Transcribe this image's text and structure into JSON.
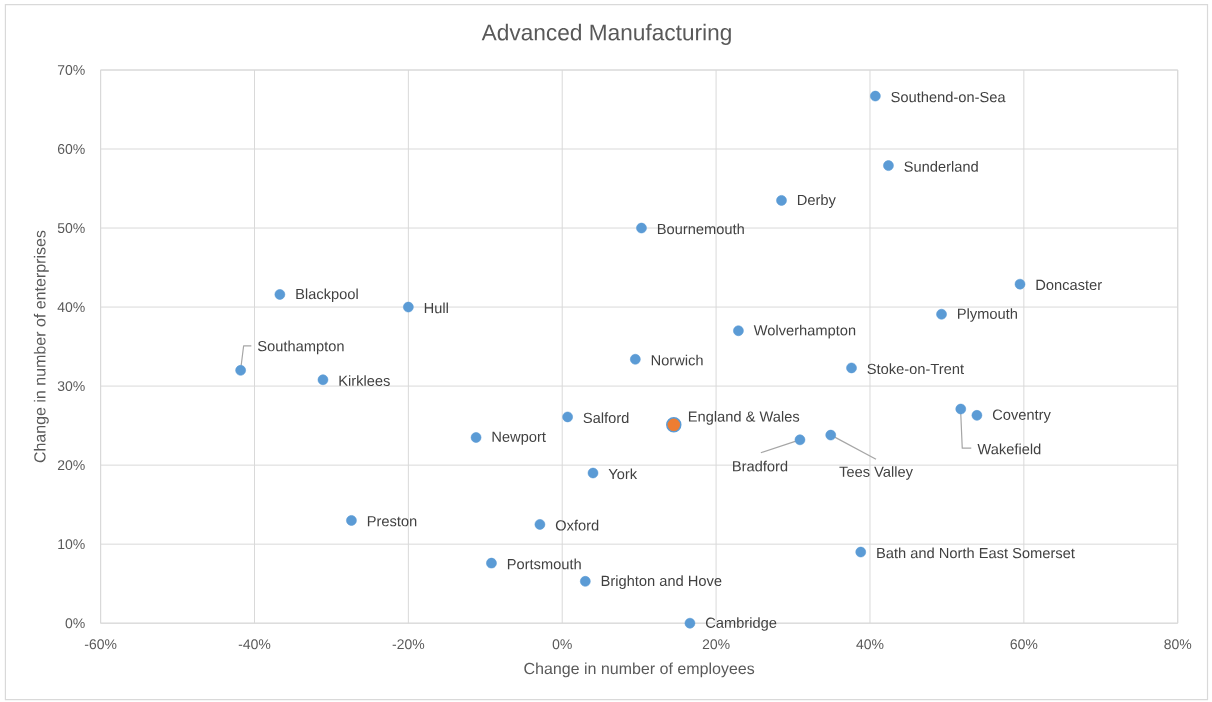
{
  "chart_data": {
    "type": "scatter",
    "title": "Advanced Manufacturing",
    "xlabel": "Change in number of employees",
    "ylabel": "Change in number of enterprises",
    "xlim": [
      -60,
      80
    ],
    "ylim": [
      0,
      70
    ],
    "xticks": [
      {
        "value": -60,
        "label": "-60%"
      },
      {
        "value": -40,
        "label": "-40%"
      },
      {
        "value": -20,
        "label": "-20%"
      },
      {
        "value": 0,
        "label": "0%"
      },
      {
        "value": 20,
        "label": "20%"
      },
      {
        "value": 40,
        "label": "40%"
      },
      {
        "value": 60,
        "label": "60%"
      },
      {
        "value": 80,
        "label": "80%"
      }
    ],
    "yticks": [
      {
        "value": 0,
        "label": "0%"
      },
      {
        "value": 10,
        "label": "10%"
      },
      {
        "value": 20,
        "label": "20%"
      },
      {
        "value": 30,
        "label": "30%"
      },
      {
        "value": 40,
        "label": "40%"
      },
      {
        "value": 50,
        "label": "50%"
      },
      {
        "value": 60,
        "label": "60%"
      },
      {
        "value": 70,
        "label": "70%"
      }
    ],
    "grid": true,
    "marker": "circle",
    "series": [
      {
        "color": "#5b9bd5",
        "x": [
          40.7,
          42.4,
          28.5,
          10.3,
          59.5,
          -36.7,
          -20.0,
          49.3,
          22.9,
          9.5,
          -41.8,
          37.6,
          -31.1,
          51.8,
          53.9,
          0.7,
          34.9,
          -11.2,
          30.9,
          4.0,
          -27.4,
          -2.9,
          38.8,
          -9.2,
          3.0,
          16.6
        ],
        "values": [
          66.7,
          57.9,
          53.5,
          50.0,
          42.9,
          41.6,
          40.0,
          39.1,
          37.0,
          33.4,
          32.0,
          32.3,
          30.8,
          27.1,
          26.3,
          26.1,
          23.8,
          23.5,
          23.2,
          19.0,
          13.0,
          12.5,
          9.0,
          7.6,
          5.3,
          0.0
        ]
      },
      {
        "name": "England & Wales",
        "color": "#ed7d31",
        "x": [
          14.5
        ],
        "values": [
          25.1
        ]
      }
    ],
    "annotations": [
      {
        "text": "Southend-on-Sea",
        "x": 40.7,
        "y": 66.7
      },
      {
        "text": "Sunderland",
        "x": 42.4,
        "y": 57.9
      },
      {
        "text": "Derby",
        "x": 28.5,
        "y": 53.5
      },
      {
        "text": "Bournemouth",
        "x": 10.3,
        "y": 50.0
      },
      {
        "text": "Doncaster",
        "x": 59.5,
        "y": 42.9
      },
      {
        "text": "Blackpool",
        "x": -36.7,
        "y": 41.6
      },
      {
        "text": "Hull",
        "x": -20.0,
        "y": 40.0
      },
      {
        "text": "Plymouth",
        "x": 49.3,
        "y": 39.1
      },
      {
        "text": "Wolverhampton",
        "x": 22.9,
        "y": 37.0
      },
      {
        "text": "Norwich",
        "x": 9.5,
        "y": 33.4
      },
      {
        "text": "Southampton",
        "x": -41.8,
        "y": 32.0
      },
      {
        "text": "Stoke-on-Trent",
        "x": 37.6,
        "y": 32.3
      },
      {
        "text": "Kirklees",
        "x": -31.1,
        "y": 30.8
      },
      {
        "text": "Wakefield",
        "x": 51.8,
        "y": 27.1
      },
      {
        "text": "Coventry",
        "x": 53.9,
        "y": 26.3
      },
      {
        "text": "Salford",
        "x": 0.7,
        "y": 26.1
      },
      {
        "text": "Tees Valley",
        "x": 34.9,
        "y": 23.8
      },
      {
        "text": "Newport",
        "x": -11.2,
        "y": 23.5
      },
      {
        "text": "Bradford",
        "x": 30.9,
        "y": 23.2
      },
      {
        "text": "York",
        "x": 4.0,
        "y": 19.0
      },
      {
        "text": "Preston",
        "x": -27.4,
        "y": 13.0
      },
      {
        "text": "Oxford",
        "x": -2.9,
        "y": 12.5
      },
      {
        "text": "Bath and North East Somerset",
        "x": 38.8,
        "y": 9.0
      },
      {
        "text": "Portsmouth",
        "x": -9.2,
        "y": 7.6
      },
      {
        "text": "Brighton and Hove",
        "x": 3.0,
        "y": 5.3
      },
      {
        "text": "Cambridge",
        "x": 16.6,
        "y": 0.0
      }
    ]
  }
}
